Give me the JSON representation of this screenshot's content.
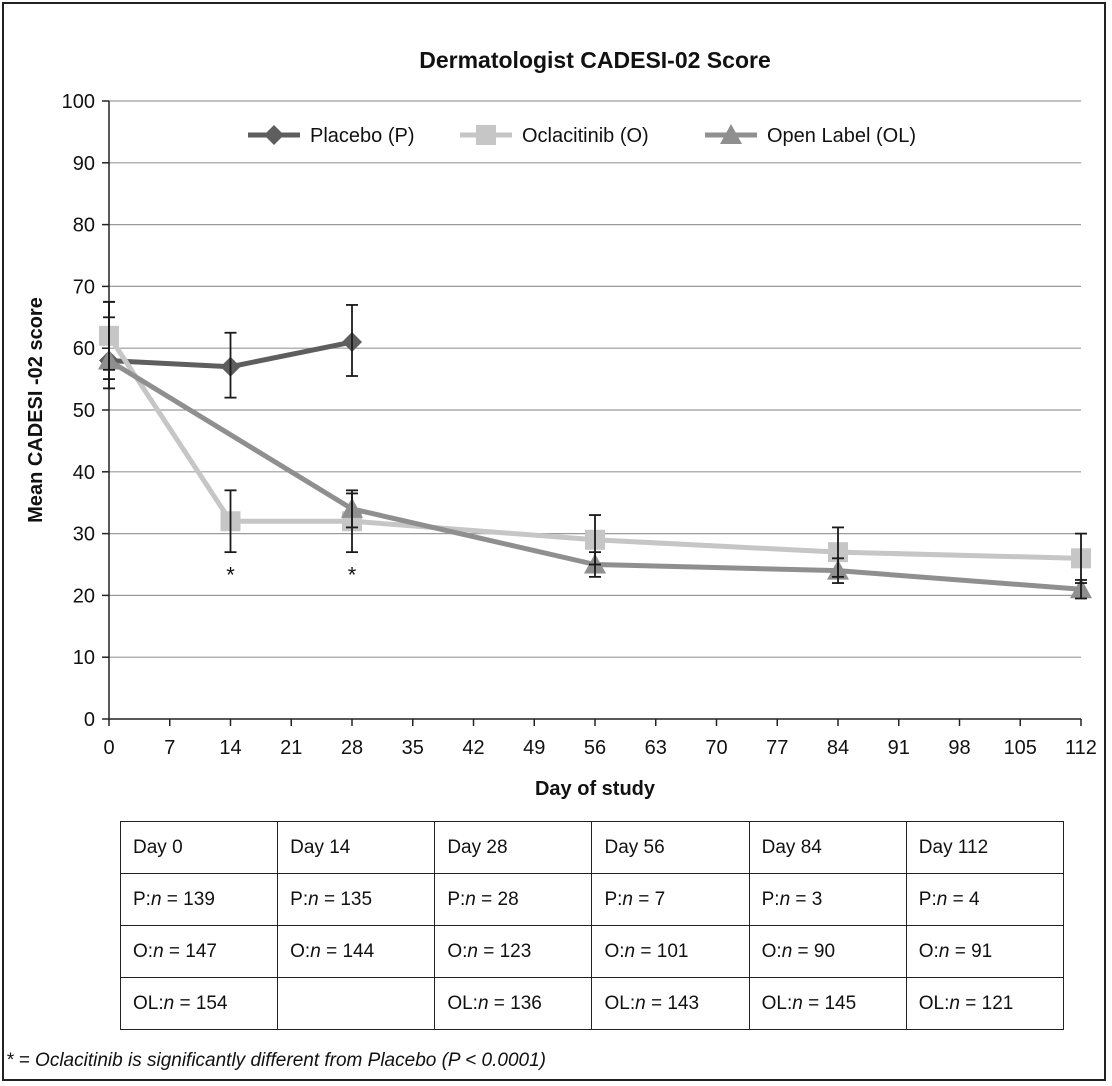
{
  "chart_data": {
    "type": "line",
    "title": "Dermatologist CADESI-02 Score",
    "xlabel": "Day of study",
    "ylabel": "Mean CADESI -02 score",
    "xlim": [
      0,
      112
    ],
    "ylim": [
      0,
      100
    ],
    "x_ticks": [
      0,
      7,
      14,
      21,
      28,
      35,
      42,
      49,
      56,
      63,
      70,
      77,
      84,
      91,
      98,
      105,
      112
    ],
    "y_ticks": [
      0,
      10,
      20,
      30,
      40,
      50,
      60,
      70,
      80,
      90,
      100
    ],
    "grid": "horizontal",
    "legend_position": "top-center",
    "series": [
      {
        "name": "Placebo (P)",
        "marker": "diamond",
        "color": "#5e5e5e",
        "x": [
          0,
          14,
          28
        ],
        "y": [
          58,
          57,
          61
        ],
        "error_low": [
          53.5,
          52,
          55.5
        ],
        "error_high": [
          67.5,
          62.5,
          67
        ]
      },
      {
        "name": "Oclacitinib (O)",
        "marker": "square",
        "color": "#c6c6c6",
        "x": [
          0,
          14,
          28,
          56,
          84,
          112
        ],
        "y": [
          62,
          32,
          32,
          29,
          27,
          26
        ],
        "error_low": [
          56.5,
          27,
          27,
          25,
          23,
          22
        ],
        "error_high": [
          67.5,
          37,
          36.5,
          33,
          31,
          30
        ]
      },
      {
        "name": "Open Label (OL)",
        "marker": "triangle",
        "color": "#8f8f8f",
        "x": [
          0,
          28,
          56,
          84,
          112
        ],
        "y": [
          58,
          34,
          25,
          24,
          21
        ],
        "error_low": [
          55,
          31,
          23,
          22,
          19.5
        ],
        "error_high": [
          65,
          37,
          27,
          26,
          22.5
        ]
      }
    ],
    "annotations": [
      {
        "x": 14,
        "y": 24,
        "text": "*"
      },
      {
        "x": 28,
        "y": 24,
        "text": "*"
      }
    ]
  },
  "table": {
    "headers": [
      "Day 0",
      "Day 14",
      "Day 28",
      "Day 56",
      "Day 84",
      "Day 112"
    ],
    "rows": [
      [
        {
          "prefix": "P:",
          "eq": " = 139"
        },
        {
          "prefix": "P:",
          "eq": " = 135"
        },
        {
          "prefix": "P:",
          "eq": " = 28"
        },
        {
          "prefix": "P:",
          "eq": " = 7"
        },
        {
          "prefix": "P:",
          "eq": " = 3"
        },
        {
          "prefix": "P:",
          "eq": " = 4"
        }
      ],
      [
        {
          "prefix": "O:",
          "eq": " = 147"
        },
        {
          "prefix": "O:",
          "eq": " = 144"
        },
        {
          "prefix": "O:",
          "eq": " = 123"
        },
        {
          "prefix": "O:",
          "eq": " = 101"
        },
        {
          "prefix": "O:",
          "eq": " = 90"
        },
        {
          "prefix": "O:",
          "eq": " = 91"
        }
      ],
      [
        {
          "prefix": "OL:",
          "eq": " = 154"
        },
        null,
        {
          "prefix": "OL:",
          "eq": " = 136"
        },
        {
          "prefix": "OL:",
          "eq": " = 143"
        },
        {
          "prefix": "OL:",
          "eq": " = 145"
        },
        {
          "prefix": "OL:",
          "eq": " = 121"
        }
      ]
    ],
    "n_symbol": "n"
  },
  "footnote": "* = Oclacitinib is significantly different from Placebo (P < 0.0001)"
}
